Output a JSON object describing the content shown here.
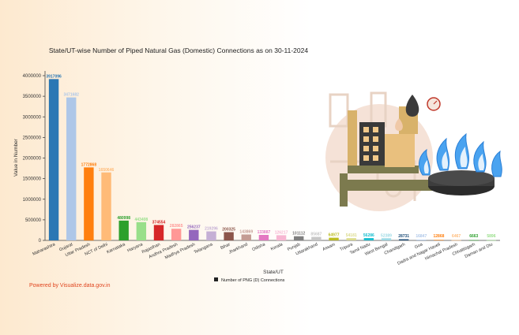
{
  "chart_data": {
    "type": "bar",
    "title": "State/UT-wise Number of Piped Natural Gas (Domestic) Connections as on 30-11-2024",
    "xlabel": "State/UT",
    "ylabel": "Value in Number",
    "ylim": [
      0,
      4000000
    ],
    "yticks": [
      "0",
      "500000",
      "1000000",
      "1500000",
      "2000000",
      "2500000",
      "3000000",
      "3500000",
      "4000000"
    ],
    "legend": {
      "label": "Number of PNG (D) Connections",
      "position": "bottom"
    },
    "grid": false,
    "categories": [
      "Maharashtra",
      "Gujarat",
      "Uttar Pradesh",
      "NCT of Delhi",
      "Karnataka",
      "Haryana",
      "Rajasthan",
      "Andhra Pradesh",
      "Madhya Pradesh",
      "Telangana",
      "Bihar",
      "Jharkhand",
      "Odisha",
      "Kerala",
      "Punjab",
      "Uttarakhand",
      "Assam",
      "Tripura",
      "Tamil Nadu",
      "West Bengal",
      "Chandigarh",
      "Goa",
      "Dadra and Nagar Haveli",
      "Himachal Pradesh",
      "Chhattisgarh",
      "Daman and Diu"
    ],
    "values": [
      3917096,
      3471682,
      1772868,
      1650646,
      480998,
      443408,
      374554,
      282865,
      256237,
      219296,
      200325,
      143869,
      133887,
      126217,
      101112,
      85687,
      64977,
      54181,
      56286,
      52389,
      28731,
      16847,
      12868,
      6467,
      6663,
      5896
    ],
    "value_labels": [
      "3917096",
      "3471682",
      "1772868",
      "1650646",
      "480998",
      "443408",
      "374554",
      "282865",
      "256237",
      "219296",
      "200325",
      "143869",
      "133887",
      "126217",
      "101112",
      "85687",
      "64977",
      "54181",
      "56286",
      "52389",
      "28731",
      "16847",
      "12868",
      "6467",
      "6663",
      "5896"
    ],
    "colors": [
      "#2a77b4",
      "#aec7e8",
      "#ff7f0e",
      "#ffbb78",
      "#2ca02c",
      "#98df8a",
      "#d62728",
      "#ff9896",
      "#9467bd",
      "#c5b0d5",
      "#8c564b",
      "#c49c94",
      "#e377c2",
      "#f7b6d2",
      "#7f7f7f",
      "#c7c7c7",
      "#bcbd22",
      "#dbdb8d",
      "#17becf",
      "#9edae5",
      "#1f4e79",
      "#aec7e8",
      "#ff7f0e",
      "#ffbb78",
      "#2ca02c",
      "#98df8a"
    ]
  },
  "footer": "Powered by Visualize.data.gov.in"
}
